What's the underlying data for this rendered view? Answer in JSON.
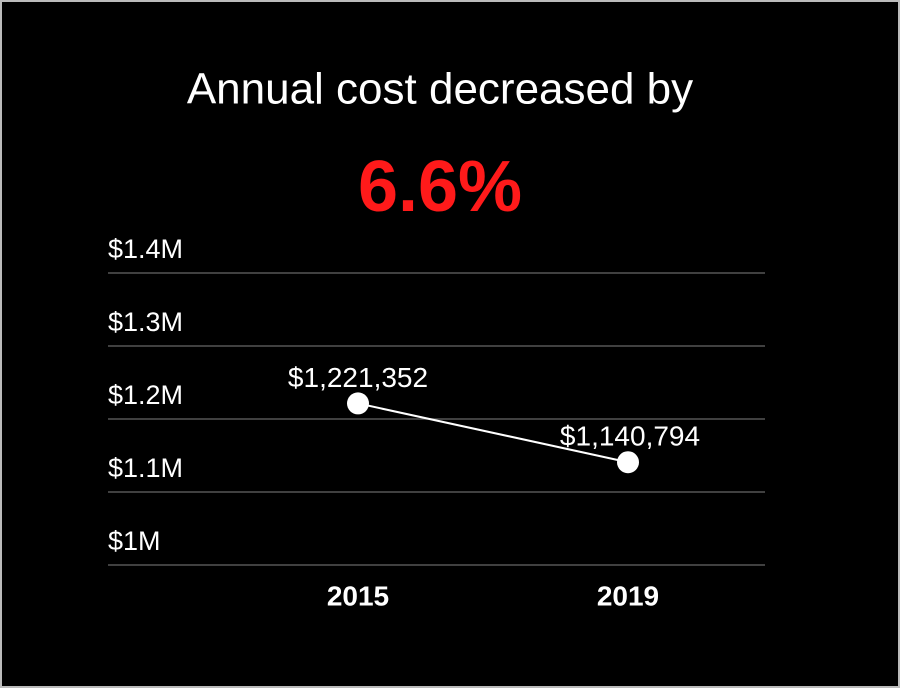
{
  "chart_data": {
    "type": "line",
    "title": "Annual cost decreased by",
    "subtitle": "6.6%",
    "subtitle_color": "#ff1a1a",
    "categories": [
      "2015",
      "2019"
    ],
    "values": [
      1221352,
      1140794
    ],
    "value_labels": [
      "$1,221,352",
      "$1,140,794"
    ],
    "color": "#ffffff",
    "ylim": [
      1000000,
      1400000
    ],
    "yticks": [
      {
        "value": 1000000,
        "label": "$1M"
      },
      {
        "value": 1100000,
        "label": "$1.1M"
      },
      {
        "value": 1200000,
        "label": "$1.2M"
      },
      {
        "value": 1300000,
        "label": "$1.3M"
      },
      {
        "value": 1400000,
        "label": "$1.4M"
      }
    ],
    "grid": true
  }
}
